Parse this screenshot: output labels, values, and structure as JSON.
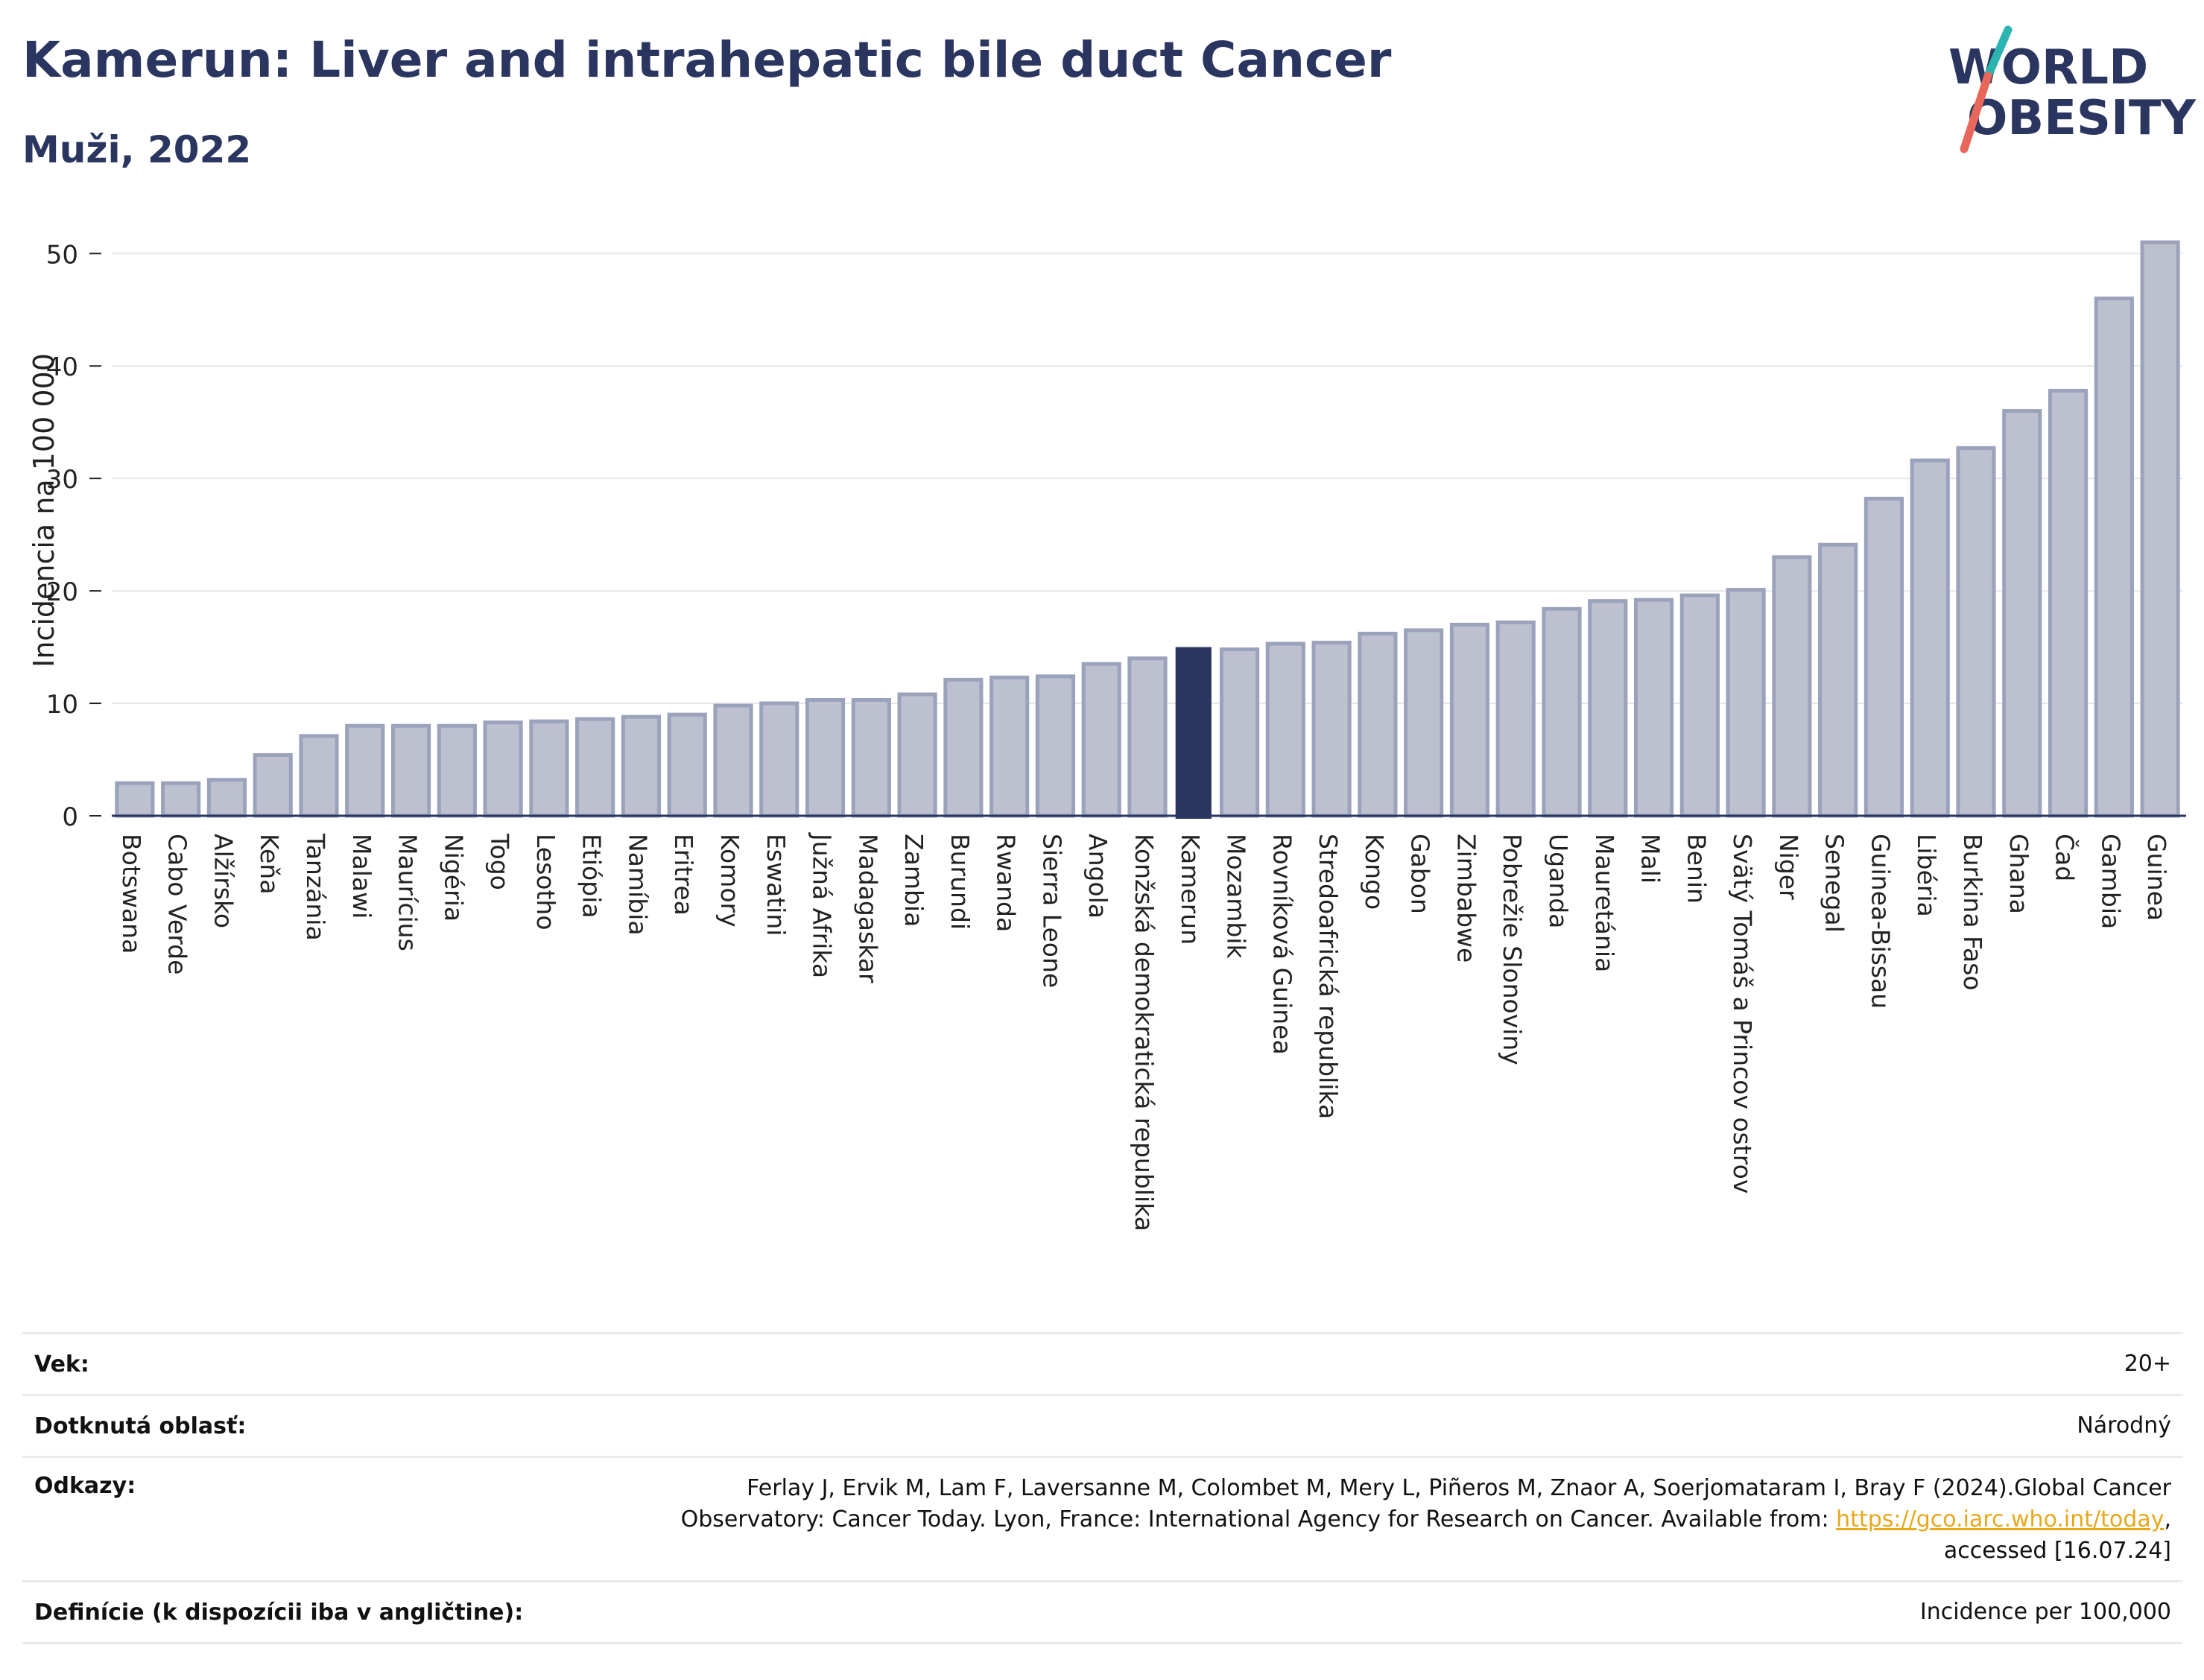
{
  "header": {
    "title": "Kamerun: Liver and intrahepatic bile duct Cancer",
    "subtitle": "Muži, 2022"
  },
  "logo": {
    "line1": "WORLD",
    "line2": "OBESITY"
  },
  "colors": {
    "bar": "#bcc0cf",
    "bar_border": "#9ba2bb",
    "highlight": "#2a3560",
    "grid": "#e5e7ed",
    "axis": "#2a3560"
  },
  "chart_data": {
    "type": "bar",
    "ylabel": "Incidencia na 100 000",
    "ylim": [
      0,
      53
    ],
    "yticks": [
      0,
      10,
      20,
      30,
      40,
      50
    ],
    "grid": true,
    "highlight": "Kamerun",
    "categories": [
      "Botswana",
      "Cabo Verde",
      "Alžírsko",
      "Keňa",
      "Tanzánia",
      "Malawi",
      "Maurícius",
      "Nigéria",
      "Togo",
      "Lesotho",
      "Etiópia",
      "Namíbia",
      "Eritrea",
      "Komory",
      "Eswatini",
      "Južná Afrika",
      "Madagaskar",
      "Zambia",
      "Burundi",
      "Rwanda",
      "Sierra Leone",
      "Angola",
      "Konžská demokratická republika",
      "Kamerun",
      "Mozambik",
      "Rovníková Guinea",
      "Stredoafrická republika",
      "Kongo",
      "Gabon",
      "Zimbabwe",
      "Pobrežie Slonoviny",
      "Uganda",
      "Mauretánia",
      "Mali",
      "Benin",
      "Svätý Tomáš a Princov ostrov",
      "Niger",
      "Senegal",
      "Guinea-Bissau",
      "Libéria",
      "Burkina Faso",
      "Ghana",
      "Čad",
      "Gambia",
      "Guinea"
    ],
    "values": [
      2.9,
      2.9,
      3.2,
      5.4,
      7.1,
      8.0,
      8.0,
      8.0,
      8.3,
      8.4,
      8.6,
      8.8,
      9.0,
      9.8,
      10.0,
      10.3,
      10.3,
      10.8,
      12.1,
      12.3,
      12.4,
      13.5,
      14.0,
      15.0,
      14.8,
      15.3,
      15.4,
      16.2,
      16.5,
      17.0,
      17.2,
      18.4,
      19.1,
      19.2,
      19.6,
      20.1,
      23.0,
      24.1,
      28.2,
      31.6,
      32.7,
      36.0,
      37.8,
      46.0,
      51.0
    ]
  },
  "info": {
    "age_label": "Vek:",
    "age_value": "20+",
    "area_label": "Dotknutá oblasť:",
    "area_value": "Národný",
    "refs_label": "Odkazy:",
    "refs_line1": "Ferlay J, Ervik M, Lam F, Laversanne M, Colombet M, Mery L, Piñeros M, Znaor A, Soerjomataram I, Bray F (2024).Global Cancer",
    "refs_line2": "Observatory: Cancer Today. Lyon, France: International Agency for Research on Cancer. Available from:",
    "refs_link": "https://gco.iarc.who.int/today",
    "refs_line3": "accessed [16.07.24]",
    "def_label": "Definície (k dispozícii iba v angličtine):",
    "def_value": "Incidence per 100,000"
  }
}
